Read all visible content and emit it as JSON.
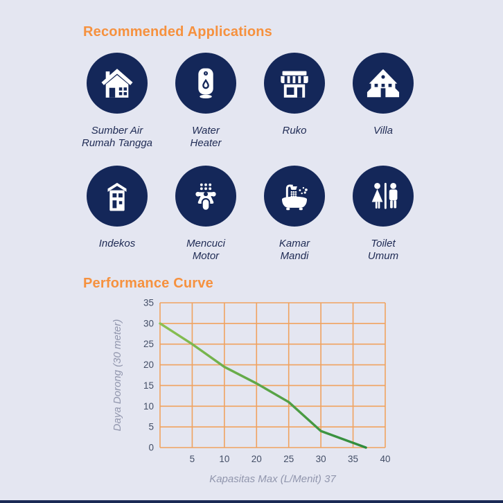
{
  "page": {
    "background_color": "#e4e6f1",
    "footer_bar_color": "#1b2a55"
  },
  "headings": {
    "recommended": "Recommended Applications",
    "performance": "Performance Curve",
    "accent_color": "#f6913e"
  },
  "icons": {
    "circle_color": "#142759",
    "glyph_color": "#ffffff",
    "label_color": "#202c55",
    "items": [
      {
        "name": "house-icon",
        "label": "Sumber Air\nRumah Tangga"
      },
      {
        "name": "water-heater-icon",
        "label": "Water\nHeater"
      },
      {
        "name": "shop-icon",
        "label": "Ruko"
      },
      {
        "name": "villa-icon",
        "label": "Villa"
      },
      {
        "name": "boarding-house-icon",
        "label": "Indekos"
      },
      {
        "name": "scooter-wash-icon",
        "label": "Mencuci\nMotor"
      },
      {
        "name": "bathtub-icon",
        "label": "Kamar\nMandi"
      },
      {
        "name": "restroom-icon",
        "label": "Toilet\nUmum"
      }
    ]
  },
  "chart_data": {
    "type": "line",
    "title": "Performance Curve",
    "xlabel": "Kapasitas Max (L/Menit) 37",
    "ylabel": "Daya Dorong (30 meter)",
    "xlim": [
      0,
      40
    ],
    "ylim": [
      0,
      35
    ],
    "x_ticks": [
      5,
      10,
      20,
      25,
      30,
      35,
      40
    ],
    "y_ticks": [
      0,
      5,
      10,
      15,
      20,
      25,
      30,
      35
    ],
    "grid": true,
    "grid_color": "#f0a25f",
    "tick_color": "#434e66",
    "axis_title_color": "#9196ad",
    "line_color_start": "#8cc152",
    "line_color_end": "#2e8b3d",
    "points": [
      {
        "x": 0,
        "y": 30
      },
      {
        "x": 5,
        "y": 25
      },
      {
        "x": 10,
        "y": 19.5
      },
      {
        "x": 20,
        "y": 15.5
      },
      {
        "x": 25,
        "y": 11
      },
      {
        "x": 30,
        "y": 4
      },
      {
        "x": 37,
        "y": 0
      }
    ]
  }
}
